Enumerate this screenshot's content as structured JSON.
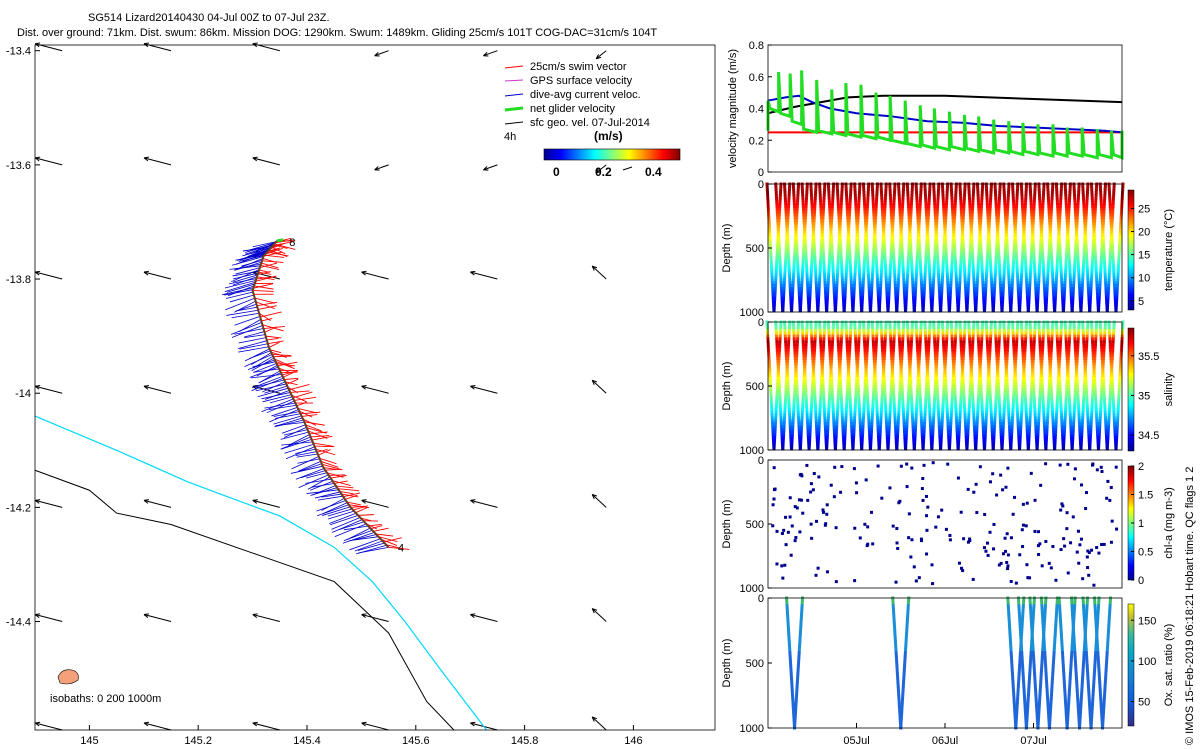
{
  "header": {
    "line1": "SG514 Lizard20140430 04-Jul 00Z to 07-Jul 23Z.",
    "line2": "Dist. over ground: 71km. Dist. swum: 86km. Mission DOG: 1290km. Swum: 1489km. Gliding 25cm/s 101T COG-DAC=31cm/s 104T"
  },
  "colors": {
    "swim": "#ff0000",
    "gps": "#cc33cc",
    "dac": "#0000cc",
    "net": "#22dd22",
    "geo": "#000000",
    "isobath_200": "#00d8ff",
    "isobath_1000": "#000000",
    "island": "#f4a07a"
  },
  "chart_data": [
    {
      "id": "map",
      "type": "scatter",
      "title": "",
      "xlabel": "",
      "ylabel": "",
      "xlim": [
        144.9,
        146.15
      ],
      "ylim": [
        -14.59,
        -13.39
      ],
      "xticks": [
        "145",
        "145.2",
        "145.4",
        "145.6",
        "145.8",
        "146"
      ],
      "yticks": [
        "-13.4",
        "-13.6",
        "-13.8",
        "-14",
        "-14.2",
        "-14.4"
      ],
      "legend": {
        "items": [
          "25cm/s swim vector",
          "GPS surface velocity",
          "dive-avg current veloc.",
          "net glider velocity",
          "sfc geo. vel. 07-Jul-2014"
        ],
        "scale_label": "4h",
        "cbar_title": "(m/s)",
        "cbar_ticks": [
          "0",
          "0.2",
          "0.4"
        ]
      },
      "isobaths_label": "isobaths: 0   200  1000m",
      "track": [
        [
          145.345,
          -13.733
        ],
        [
          145.32,
          -13.76
        ],
        [
          145.3,
          -13.82
        ],
        [
          145.33,
          -13.92
        ],
        [
          145.36,
          -13.98
        ],
        [
          145.395,
          -14.05
        ],
        [
          145.43,
          -14.13
        ],
        [
          145.48,
          -14.2
        ],
        [
          145.55,
          -14.27
        ]
      ],
      "track_labels": [
        {
          "text": "8",
          "lon": 145.36,
          "lat": -13.735
        },
        {
          "text": "4",
          "lon": 145.56,
          "lat": -14.27
        }
      ],
      "geo_vectors": {
        "lons": [
          144.95,
          145.15,
          145.35,
          145.55,
          145.75,
          145.95
        ],
        "lats": [
          -13.4,
          -13.6,
          -13.8,
          -14.0,
          -14.2,
          -14.4,
          -14.59
        ]
      },
      "isobath_1000": [
        [
          144.9,
          -14.135
        ],
        [
          145.0,
          -14.17
        ],
        [
          145.05,
          -14.21
        ],
        [
          145.15,
          -14.23
        ],
        [
          145.3,
          -14.28
        ],
        [
          145.45,
          -14.33
        ],
        [
          145.55,
          -14.42
        ],
        [
          145.62,
          -14.54
        ],
        [
          145.67,
          -14.59
        ]
      ],
      "isobath_200": [
        [
          144.9,
          -14.04
        ],
        [
          145.05,
          -14.1
        ],
        [
          145.18,
          -14.155
        ],
        [
          145.25,
          -14.18
        ],
        [
          145.35,
          -14.215
        ],
        [
          145.45,
          -14.27
        ],
        [
          145.52,
          -14.33
        ],
        [
          145.58,
          -14.4
        ],
        [
          145.65,
          -14.49
        ],
        [
          145.73,
          -14.59
        ]
      ]
    },
    {
      "id": "velocity",
      "type": "line",
      "ylabel": "velocity magnitude (m/s)",
      "ylim": [
        0,
        0.8
      ],
      "yticks": [
        "0",
        "0.2",
        "0.4",
        "0.6",
        "0.8"
      ],
      "x_days": [
        4.0,
        8.0
      ],
      "series": [
        {
          "name": "swim",
          "x": [
            4.0,
            8.0
          ],
          "y": [
            0.25,
            0.25
          ]
        },
        {
          "name": "geo",
          "x": [
            4.0,
            4.3,
            4.6,
            4.9,
            5.3,
            6.0,
            7.0,
            8.0
          ],
          "y": [
            0.37,
            0.41,
            0.44,
            0.47,
            0.48,
            0.48,
            0.46,
            0.44
          ]
        },
        {
          "name": "dac",
          "x": [
            4.0,
            4.2,
            4.35,
            4.5,
            4.7,
            5.0,
            5.4,
            5.8,
            6.2,
            6.6,
            7.0,
            7.4,
            7.8,
            8.0
          ],
          "y": [
            0.45,
            0.47,
            0.48,
            0.44,
            0.4,
            0.37,
            0.35,
            0.32,
            0.31,
            0.29,
            0.28,
            0.27,
            0.26,
            0.25
          ]
        },
        {
          "name": "net",
          "x": [
            4.0,
            4.12,
            4.25,
            4.38,
            4.55,
            4.72,
            4.88,
            5.05,
            5.22,
            5.38,
            5.55,
            5.72,
            5.88,
            6.05,
            6.22,
            6.38,
            6.55,
            6.72,
            6.88,
            7.05,
            7.22,
            7.38,
            7.55,
            7.72,
            7.88,
            8.0
          ],
          "high": [
            0.45,
            0.63,
            0.62,
            0.64,
            0.58,
            0.52,
            0.56,
            0.55,
            0.5,
            0.48,
            0.45,
            0.42,
            0.4,
            0.38,
            0.36,
            0.35,
            0.33,
            0.32,
            0.31,
            0.3,
            0.3,
            0.28,
            0.28,
            0.27,
            0.26,
            0.26
          ],
          "low": [
            0.26,
            0.38,
            0.35,
            0.3,
            0.25,
            0.24,
            0.23,
            0.22,
            0.21,
            0.2,
            0.18,
            0.16,
            0.15,
            0.14,
            0.14,
            0.13,
            0.12,
            0.12,
            0.11,
            0.11,
            0.1,
            0.1,
            0.1,
            0.09,
            0.09,
            0.09
          ]
        }
      ]
    },
    {
      "id": "temperature",
      "type": "scatter",
      "ylabel": "Depth (m)",
      "ylim": [
        1000,
        0
      ],
      "yticks": [
        "0",
        "500",
        "1000"
      ],
      "cbar_label": "temperature (°C)",
      "cbar_ticks": [
        "5",
        "10",
        "15",
        "20",
        "25"
      ],
      "cbar_range": [
        3,
        29
      ],
      "dives": 40
    },
    {
      "id": "salinity",
      "type": "scatter",
      "ylabel": "Depth (m)",
      "ylim": [
        1000,
        0
      ],
      "yticks": [
        "0",
        "500",
        "1000"
      ],
      "cbar_label": "salinity",
      "cbar_ticks": [
        "34.5",
        "35",
        "35.5"
      ],
      "cbar_range": [
        34.3,
        35.85
      ],
      "dives": 40
    },
    {
      "id": "chla",
      "type": "scatter",
      "ylabel": "Depth (m)",
      "ylim": [
        1000,
        0
      ],
      "yticks": [
        "0",
        "500",
        "1000"
      ],
      "cbar_label": "chl-a (mg m-3)",
      "cbar_ticks": [
        "0",
        "0.5",
        "1",
        "1.5",
        "2"
      ],
      "cbar_range": [
        0,
        2
      ]
    },
    {
      "id": "oxygen",
      "type": "scatter",
      "ylabel": "Depth (m)",
      "ylim": [
        1000,
        0
      ],
      "yticks": [
        "0",
        "500",
        "1000"
      ],
      "cbar_label": "Ox. sat. ratio (%)",
      "cbar_ticks": [
        "50",
        "100",
        "150"
      ],
      "cbar_range": [
        20,
        170
      ],
      "dive_days": [
        4.3,
        5.5,
        6.8,
        6.92,
        7.05,
        7.18,
        7.38,
        7.52,
        7.65,
        7.78
      ],
      "xticks": [
        "05Jul",
        "06Jul",
        "07Jul"
      ],
      "xtick_days": [
        5,
        6,
        7
      ]
    }
  ],
  "side_label": "© IMOS 15-Feb-2019 06:18:21 Hobart time. QC flags 1  2"
}
